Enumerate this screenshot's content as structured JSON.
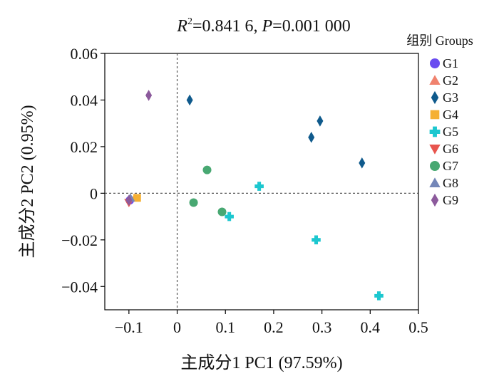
{
  "chart_data": {
    "type": "scatter",
    "title": {
      "r_symbol": "R",
      "r_sup": "2",
      "r_value": "=0.841 6, ",
      "p_symbol": "P",
      "p_value": "=0.001 000"
    },
    "xlabel": "主成分1 PC1 (97.59%)",
    "ylabel": "主成分2 PC2 (0.95%)",
    "xlim": [
      -0.15,
      0.5
    ],
    "ylim": [
      -0.05,
      0.06
    ],
    "xticks": [
      -0.1,
      0,
      0.1,
      0.2,
      0.3,
      0.4,
      0.5
    ],
    "xtick_labels": [
      "−0.1",
      "0",
      "0.1",
      "0.2",
      "0.3",
      "0.4",
      "0.5"
    ],
    "yticks": [
      -0.04,
      -0.02,
      0,
      0.02,
      0.04,
      0.06
    ],
    "ytick_labels": [
      "−0.04",
      "−0.02",
      "0",
      "0.02",
      "0.04",
      "0.06"
    ],
    "reference_lines": {
      "x": 0,
      "y": 0
    },
    "legend": {
      "title": "组别 Groups",
      "placement": "right"
    },
    "series": [
      {
        "name": "G1",
        "marker": "circle",
        "color": "#6a4cf0",
        "points": [
          [
            -0.098,
            -0.003
          ]
        ]
      },
      {
        "name": "G2",
        "marker": "triangle-up",
        "color": "#f0826e",
        "points": [
          [
            -0.088,
            -0.002
          ]
        ]
      },
      {
        "name": "G3",
        "marker": "diamond",
        "color": "#0f5a8c",
        "points": [
          [
            0.026,
            0.04
          ],
          [
            0.278,
            0.024
          ],
          [
            0.296,
            0.031
          ],
          [
            0.383,
            0.013
          ]
        ]
      },
      {
        "name": "G4",
        "marker": "square",
        "color": "#f5b032",
        "points": [
          [
            -0.083,
            -0.002
          ]
        ]
      },
      {
        "name": "G5",
        "marker": "plus",
        "color": "#1cc7cf",
        "points": [
          [
            0.17,
            0.003
          ],
          [
            0.108,
            -0.01
          ],
          [
            0.288,
            -0.02
          ],
          [
            0.418,
            -0.044
          ]
        ]
      },
      {
        "name": "G6",
        "marker": "triangle-down",
        "color": "#e8554e",
        "points": [
          [
            -0.1,
            -0.004
          ]
        ]
      },
      {
        "name": "G7",
        "marker": "circle",
        "color": "#48a872",
        "points": [
          [
            0.062,
            0.01
          ],
          [
            0.034,
            -0.004
          ],
          [
            0.093,
            -0.008
          ]
        ]
      },
      {
        "name": "G8",
        "marker": "triangle-up",
        "color": "#7386b8",
        "points": [
          [
            -0.097,
            -0.002
          ]
        ]
      },
      {
        "name": "G9",
        "marker": "diamond",
        "color": "#8c5a9c",
        "points": [
          [
            -0.059,
            0.042
          ],
          [
            -0.1,
            -0.003
          ]
        ]
      }
    ]
  }
}
